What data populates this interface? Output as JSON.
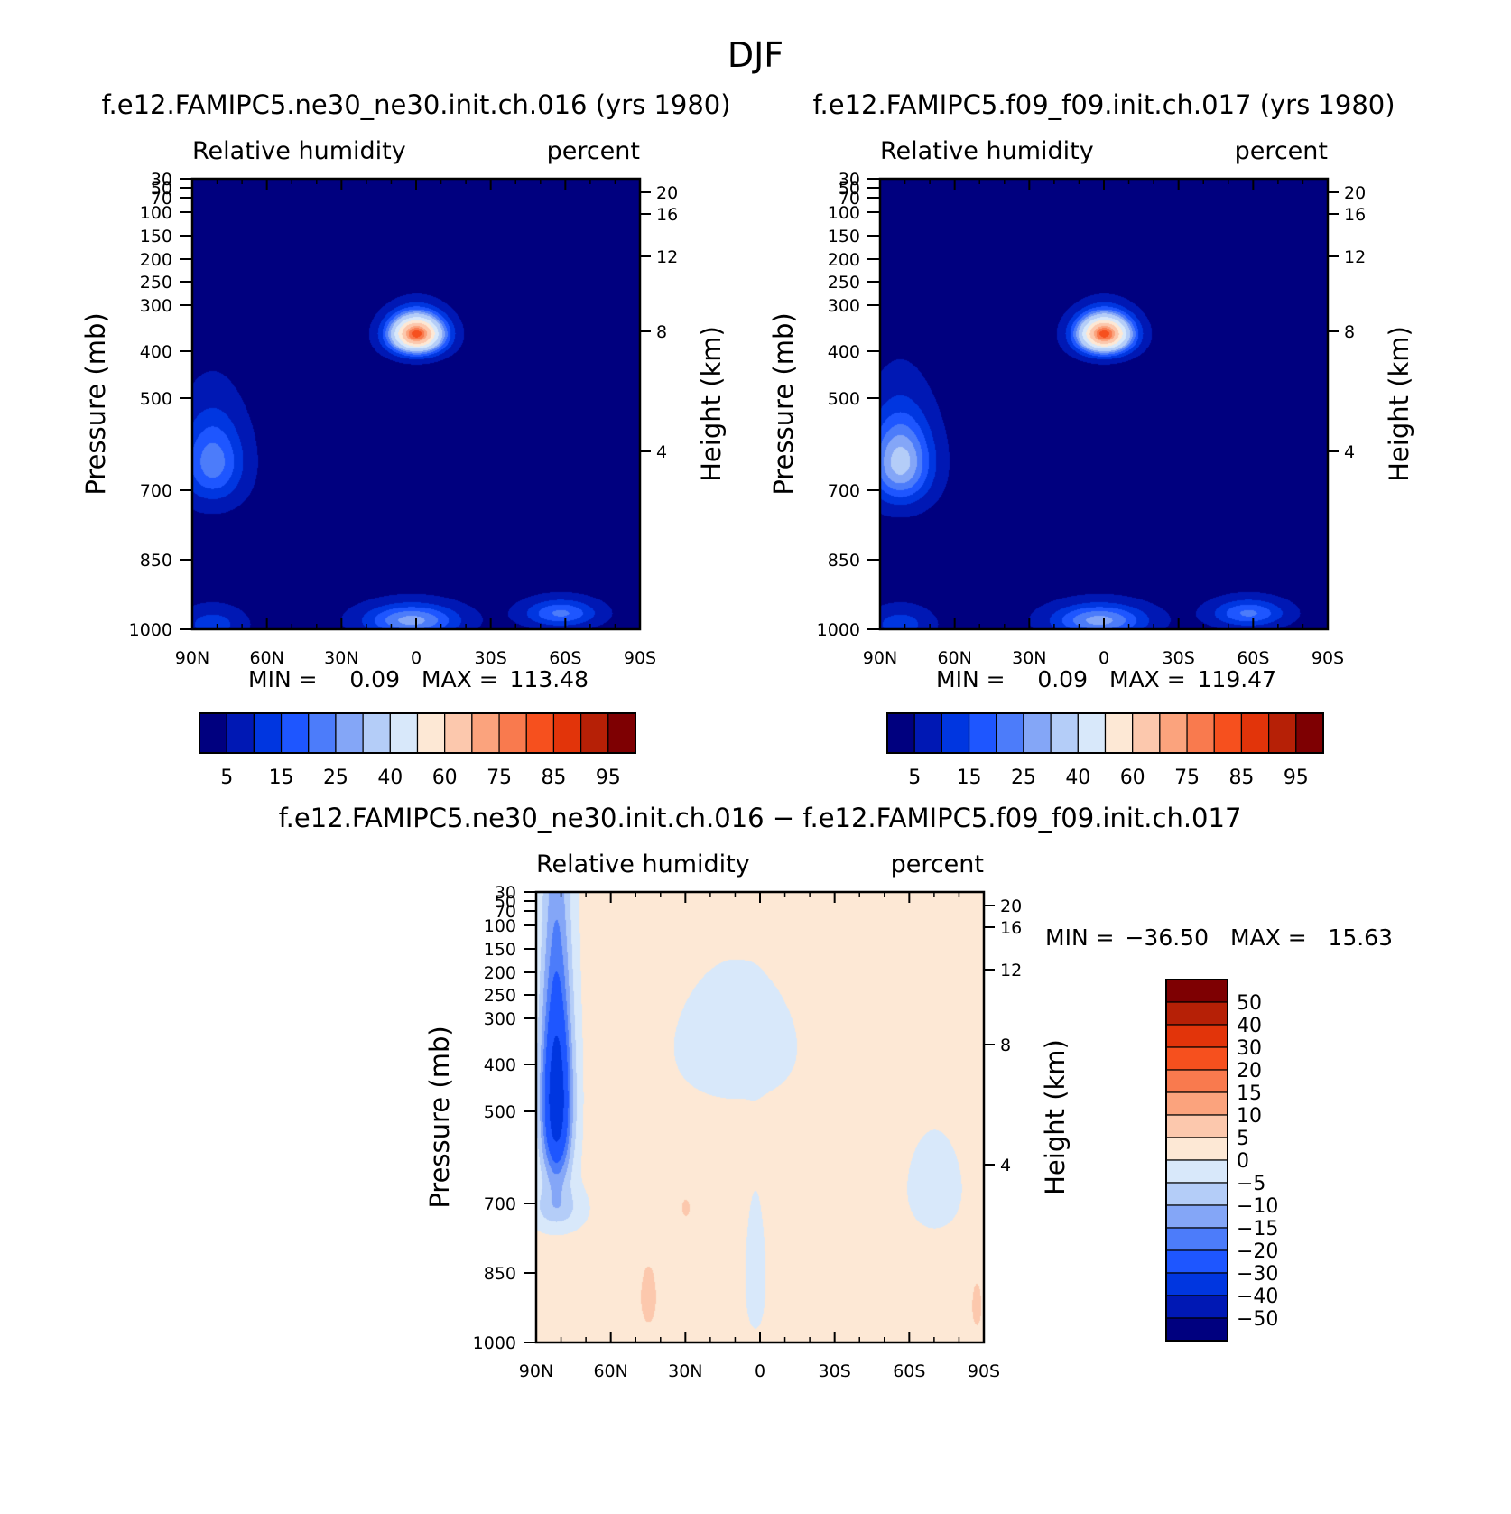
{
  "figure_title": "DJF",
  "colors": {
    "rh_levels": [
      "#00007f",
      "#0018b4",
      "#0036e0",
      "#1e56ff",
      "#4c7cfa",
      "#84a6f7",
      "#b4cdf8",
      "#d8e8fa",
      "#fde8d5",
      "#fcc8ad",
      "#fba37d",
      "#f97a4e",
      "#f6501e",
      "#e2340a",
      "#b62006",
      "#7e0002"
    ],
    "diff_levels": [
      "#00007f",
      "#0018b4",
      "#0036e0",
      "#1e56ff",
      "#4c7cfa",
      "#84a6f7",
      "#b4cdf8",
      "#d8e8fa",
      "#fde8d5",
      "#fcc8ad",
      "#fba37d",
      "#f97a4e",
      "#f6501e",
      "#e2340a",
      "#b62006",
      "#7e0002"
    ]
  },
  "chart_data": [
    {
      "type": "heatmap",
      "panel_title": "f.e12.FAMIPC5.ne30_ne30.init.ch.016 (yrs 1980)",
      "left_label": "Relative humidity",
      "right_label": "percent",
      "ylabel": "Pressure (mb)",
      "ylabel_right": "Height (km)",
      "x_ticks": [
        "90N",
        "60N",
        "30N",
        "0",
        "30S",
        "60S",
        "90S"
      ],
      "y_ticks": [
        "30",
        "50",
        "70",
        "100",
        "150",
        "200",
        "250",
        "300",
        "400",
        "500",
        "700",
        "850",
        "1000"
      ],
      "height_ticks": [
        "20",
        "16",
        "12",
        "8",
        "4"
      ],
      "min_label": "MIN =",
      "min_value": "0.09",
      "max_label": "MAX =",
      "max_value": "113.48",
      "colorbar_labels": [
        "5",
        "15",
        "25",
        "40",
        "60",
        "75",
        "85",
        "95"
      ],
      "model_variant": "ne30",
      "ylim": [
        1000,
        30
      ]
    },
    {
      "type": "heatmap",
      "panel_title": "f.e12.FAMIPC5.f09_f09.init.ch.017 (yrs 1980)",
      "left_label": "Relative humidity",
      "right_label": "percent",
      "ylabel": "Pressure (mb)",
      "ylabel_right": "Height (km)",
      "x_ticks": [
        "90N",
        "60N",
        "30N",
        "0",
        "30S",
        "60S",
        "90S"
      ],
      "y_ticks": [
        "30",
        "50",
        "70",
        "100",
        "150",
        "200",
        "250",
        "300",
        "400",
        "500",
        "700",
        "850",
        "1000"
      ],
      "height_ticks": [
        "20",
        "16",
        "12",
        "8",
        "4"
      ],
      "min_label": "MIN =",
      "min_value": "0.09",
      "max_label": "MAX =",
      "max_value": "119.47",
      "colorbar_labels": [
        "5",
        "15",
        "25",
        "40",
        "60",
        "75",
        "85",
        "95"
      ],
      "model_variant": "f09",
      "ylim": [
        1000,
        30
      ]
    },
    {
      "type": "heatmap",
      "panel_title": "f.e12.FAMIPC5.ne30_ne30.init.ch.016 − f.e12.FAMIPC5.f09_f09.init.ch.017",
      "left_label": "Relative humidity",
      "right_label": "percent",
      "ylabel": "Pressure (mb)",
      "ylabel_right": "Height (km)",
      "x_ticks": [
        "90N",
        "60N",
        "30N",
        "0",
        "30S",
        "60S",
        "90S"
      ],
      "y_ticks": [
        "30",
        "50",
        "70",
        "100",
        "150",
        "200",
        "250",
        "300",
        "400",
        "500",
        "700",
        "850",
        "1000"
      ],
      "height_ticks": [
        "20",
        "16",
        "12",
        "8",
        "4"
      ],
      "min_label": "MIN =",
      "min_value": "−36.50",
      "max_label": "MAX =",
      "max_value": "15.63",
      "colorbar_labels": [
        "50",
        "40",
        "30",
        "20",
        "15",
        "10",
        "5",
        "0",
        "−5",
        "−10",
        "−15",
        "−20",
        "−30",
        "−40",
        "−50"
      ],
      "ylim": [
        1000,
        30
      ]
    }
  ]
}
